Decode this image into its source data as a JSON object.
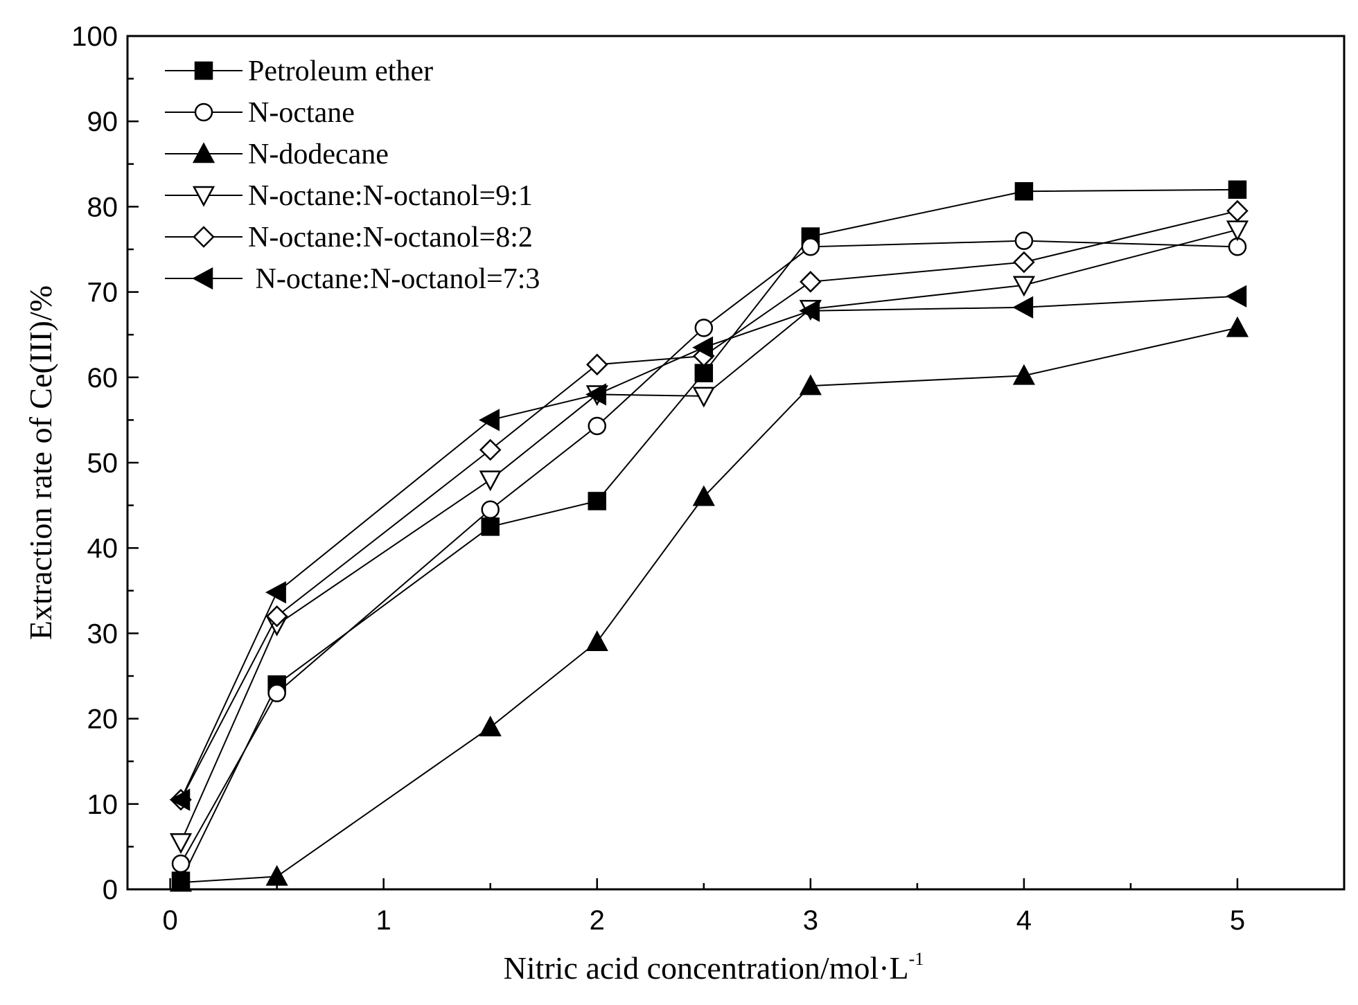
{
  "chart_data": {
    "type": "line",
    "title": "",
    "xlabel": "Nitric acid concentration/mol·L",
    "xlabel_superscript": "-1",
    "ylabel": "Extraction rate of Ce(III)/%",
    "xlim": [
      -0.2,
      5.5
    ],
    "ylim": [
      0,
      100
    ],
    "x_ticks": [
      0,
      1,
      2,
      3,
      4,
      5
    ],
    "x_minor_ticks": [
      0.5,
      1.5,
      2.5,
      3.5,
      4.5,
      5.5
    ],
    "y_ticks": [
      0,
      10,
      20,
      30,
      40,
      50,
      60,
      70,
      80,
      90,
      100
    ],
    "y_minor_ticks": [
      5,
      15,
      25,
      35,
      45,
      55,
      65,
      75,
      85,
      95
    ],
    "grid": false,
    "legend_position": "top-left",
    "x": [
      0.05,
      0.5,
      1.5,
      2,
      2.5,
      3,
      4,
      5
    ],
    "series": [
      {
        "name": "Petroleum ether",
        "marker": "square-filled",
        "values": [
          1,
          24,
          42.5,
          45.5,
          60.5,
          76.5,
          81.8,
          82
        ]
      },
      {
        "name": "N-octane",
        "marker": "circle-open",
        "values": [
          3,
          23,
          44.5,
          54.3,
          65.8,
          75.3,
          76,
          75.3
        ]
      },
      {
        "name": "N-dodecane",
        "marker": "triangle-up-filled",
        "values": [
          0.8,
          1.5,
          19,
          29,
          46,
          59,
          60.2,
          65.8
        ]
      },
      {
        "name": "N-octane:N-octanol=9:1",
        "marker": "triangle-down-open",
        "values": [
          5.5,
          31,
          48,
          58,
          57.8,
          68,
          70.8,
          77.3
        ]
      },
      {
        "name": "N-octane:N-octanol=8:2",
        "marker": "diamond-open",
        "values": [
          10.5,
          32,
          51.5,
          61.5,
          62.5,
          71.2,
          73.5,
          79.5
        ]
      },
      {
        "name": " N-octane:N-octanol=7:3",
        "marker": "triangle-left-filled",
        "values": [
          10.5,
          34.8,
          55,
          58,
          63.5,
          67.8,
          68.2,
          69.5
        ]
      }
    ]
  }
}
